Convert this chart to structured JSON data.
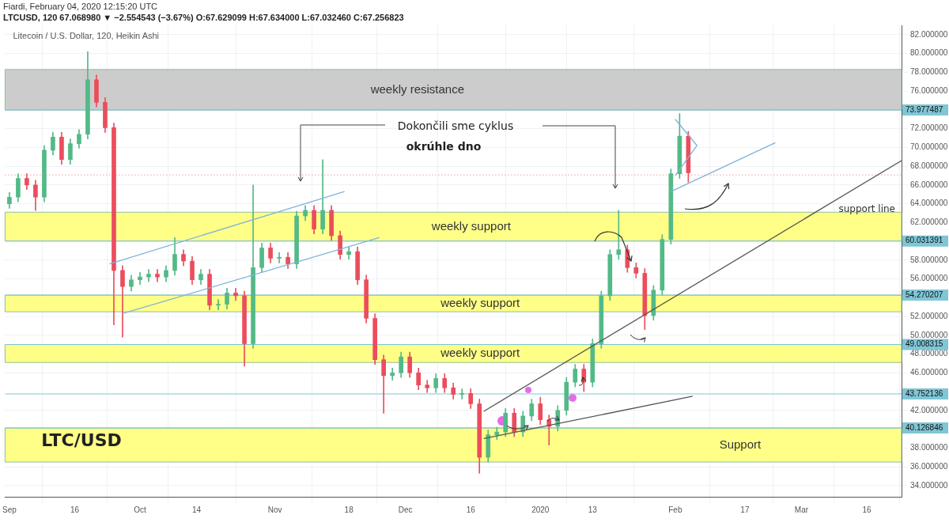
{
  "chart_data": {
    "type": "candlestick",
    "title": "Litecoin / U.S. Dollar, 120, Heikin Ashi",
    "subtitle": "LTCUSD, 120  67.068980 ▼ −2.554543 (−3.67%) O:67.629099 H:67.634000 L:67.032460 C:67.256823",
    "annotations": [
      "Fiardi, February 04, 2020 12:15:20 UTC",
      "Dokončili sme cyklus",
      "okrúhle dno",
      "LTC/USD"
    ],
    "x": [
      "2019-09-01",
      "2019-09-03",
      "2019-09-05",
      "2019-09-07",
      "2019-09-09",
      "2019-09-11",
      "2019-09-13",
      "2019-09-15",
      "2019-09-17",
      "2019-09-19",
      "2019-09-21",
      "2019-09-23",
      "2019-09-25",
      "2019-09-27",
      "2019-09-29",
      "2019-10-01",
      "2019-10-03",
      "2019-10-05",
      "2019-10-07",
      "2019-10-09",
      "2019-10-11",
      "2019-10-13",
      "2019-10-15",
      "2019-10-17",
      "2019-10-19",
      "2019-10-21",
      "2019-10-23",
      "2019-10-25",
      "2019-10-27",
      "2019-10-29",
      "2019-10-31",
      "2019-11-02",
      "2019-11-04",
      "2019-11-06",
      "2019-11-08",
      "2019-11-10",
      "2019-11-12",
      "2019-11-14",
      "2019-11-16",
      "2019-11-18",
      "2019-11-20",
      "2019-11-22",
      "2019-11-24",
      "2019-11-26",
      "2019-11-28",
      "2019-11-30",
      "2019-12-02",
      "2019-12-04",
      "2019-12-06",
      "2019-12-08",
      "2019-12-10",
      "2019-12-12",
      "2019-12-14",
      "2019-12-16",
      "2019-12-18",
      "2019-12-20",
      "2019-12-22",
      "2019-12-24",
      "2019-12-26",
      "2019-12-28",
      "2019-12-30",
      "2020-01-01",
      "2020-01-03",
      "2020-01-05",
      "2020-01-07",
      "2020-01-09",
      "2020-01-11",
      "2020-01-13",
      "2020-01-15",
      "2020-01-17",
      "2020-01-19",
      "2020-01-21",
      "2020-01-23",
      "2020-01-25",
      "2020-01-27",
      "2020-01-29",
      "2020-01-31",
      "2020-02-02",
      "2020-02-04"
    ],
    "ohlc": [
      [
        64.0,
        65.2,
        63.5,
        64.7
      ],
      [
        64.7,
        67.2,
        64.2,
        66.7
      ],
      [
        66.7,
        67.2,
        65.5,
        66.0
      ],
      [
        66.0,
        66.5,
        63.3,
        64.7
      ],
      [
        64.7,
        70.2,
        64.2,
        69.7
      ],
      [
        69.7,
        71.6,
        69.2,
        71.1
      ],
      [
        71.1,
        71.6,
        68.2,
        68.7
      ],
      [
        68.7,
        70.9,
        68.2,
        70.4
      ],
      [
        70.4,
        71.9,
        69.9,
        71.4
      ],
      [
        71.4,
        80.2,
        70.9,
        77.2
      ],
      [
        77.2,
        77.7,
        74.3,
        74.8
      ],
      [
        74.8,
        75.3,
        71.6,
        72.1
      ],
      [
        72.1,
        72.6,
        51.1,
        56.9
      ],
      [
        56.9,
        57.4,
        49.8,
        55.2
      ],
      [
        55.2,
        56.4,
        54.7,
        55.9
      ],
      [
        55.9,
        56.7,
        55.4,
        56.2
      ],
      [
        56.2,
        57.0,
        55.7,
        56.5
      ],
      [
        56.5,
        57.0,
        55.7,
        56.2
      ],
      [
        56.2,
        57.4,
        55.7,
        56.9
      ],
      [
        56.9,
        60.4,
        56.4,
        58.6
      ],
      [
        58.6,
        59.1,
        57.4,
        57.9
      ],
      [
        57.9,
        58.4,
        55.4,
        55.9
      ],
      [
        55.9,
        57.0,
        55.4,
        56.5
      ],
      [
        56.5,
        57.0,
        52.7,
        53.2
      ],
      [
        53.2,
        53.8,
        52.7,
        53.3
      ],
      [
        53.3,
        55.0,
        52.8,
        54.5
      ],
      [
        54.5,
        55.0,
        53.7,
        54.2
      ],
      [
        54.2,
        54.7,
        46.7,
        49.1
      ],
      [
        49.1,
        66.0,
        48.6,
        57.2
      ],
      [
        57.2,
        59.8,
        56.7,
        59.3
      ],
      [
        59.3,
        59.8,
        57.7,
        58.2
      ],
      [
        58.2,
        58.8,
        57.7,
        58.3
      ],
      [
        58.3,
        58.8,
        57.1,
        57.6
      ],
      [
        57.6,
        63.2,
        57.1,
        62.7
      ],
      [
        62.7,
        63.8,
        62.2,
        63.3
      ],
      [
        63.3,
        63.8,
        60.8,
        61.3
      ],
      [
        61.3,
        68.7,
        60.8,
        63.3
      ],
      [
        63.3,
        63.8,
        60.1,
        60.6
      ],
      [
        60.6,
        61.1,
        58.1,
        58.6
      ],
      [
        58.6,
        59.4,
        58.1,
        58.9
      ],
      [
        58.9,
        59.4,
        55.4,
        55.9
      ],
      [
        55.9,
        56.4,
        51.3,
        51.8
      ],
      [
        51.8,
        52.3,
        46.9,
        47.4
      ],
      [
        47.4,
        47.9,
        41.7,
        45.7
      ],
      [
        45.7,
        46.5,
        45.2,
        46.0
      ],
      [
        46.0,
        48.2,
        45.5,
        47.7
      ],
      [
        47.7,
        48.2,
        45.5,
        46.0
      ],
      [
        46.0,
        46.5,
        44.2,
        44.7
      ],
      [
        44.7,
        45.2,
        43.9,
        44.4
      ],
      [
        44.4,
        45.9,
        43.9,
        45.4
      ],
      [
        45.4,
        45.9,
        43.9,
        44.4
      ],
      [
        44.4,
        44.9,
        43.2,
        43.7
      ],
      [
        43.7,
        44.3,
        43.2,
        43.8
      ],
      [
        43.8,
        44.3,
        42.2,
        42.7
      ],
      [
        42.7,
        43.2,
        35.3,
        37.0
      ],
      [
        37.0,
        39.9,
        36.5,
        39.4
      ],
      [
        39.4,
        40.2,
        38.9,
        39.7
      ],
      [
        39.7,
        42.2,
        39.2,
        41.7
      ],
      [
        41.7,
        42.2,
        39.2,
        39.7
      ],
      [
        39.7,
        41.9,
        39.2,
        41.4
      ],
      [
        41.4,
        43.2,
        40.9,
        42.7
      ],
      [
        42.7,
        43.4,
        40.5,
        41.0
      ],
      [
        41.0,
        41.5,
        38.3,
        40.3
      ],
      [
        40.3,
        42.5,
        39.8,
        42.0
      ],
      [
        42.0,
        45.5,
        41.5,
        45.0
      ],
      [
        45.0,
        46.9,
        44.5,
        46.4
      ],
      [
        46.4,
        46.9,
        44.0,
        45.0
      ],
      [
        45.0,
        49.6,
        44.5,
        49.1
      ],
      [
        49.1,
        54.7,
        48.6,
        54.2
      ],
      [
        54.2,
        59.1,
        53.7,
        58.6
      ],
      [
        58.6,
        63.3,
        58.1,
        59.1
      ],
      [
        59.1,
        59.6,
        56.7,
        57.2
      ],
      [
        57.2,
        57.7,
        56.1,
        56.6
      ],
      [
        56.6,
        57.1,
        50.6,
        52.1
      ],
      [
        52.1,
        55.3,
        51.6,
        54.8
      ],
      [
        54.8,
        60.7,
        54.3,
        60.2
      ],
      [
        60.2,
        67.7,
        59.7,
        67.2
      ],
      [
        67.2,
        73.6,
        66.7,
        71.2
      ],
      [
        71.2,
        71.7,
        66.3,
        67.3
      ]
    ],
    "colors": [
      "#53b987",
      "#53b987",
      "#eb4d5c",
      "#eb4d5c",
      "#53b987",
      "#53b987",
      "#eb4d5c",
      "#53b987",
      "#53b987",
      "#53b987",
      "#eb4d5c",
      "#eb4d5c",
      "#eb4d5c",
      "#eb4d5c",
      "#53b987",
      "#53b987",
      "#53b987",
      "#eb4d5c",
      "#53b987",
      "#53b987",
      "#eb4d5c",
      "#eb4d5c",
      "#53b987",
      "#eb4d5c",
      "#53b987",
      "#53b987",
      "#eb4d5c",
      "#eb4d5c",
      "#53b987",
      "#53b987",
      "#eb4d5c",
      "#53b987",
      "#eb4d5c",
      "#53b987",
      "#53b987",
      "#eb4d5c",
      "#53b987",
      "#eb4d5c",
      "#eb4d5c",
      "#53b987",
      "#eb4d5c",
      "#eb4d5c",
      "#eb4d5c",
      "#eb4d5c",
      "#53b987",
      "#53b987",
      "#eb4d5c",
      "#eb4d5c",
      "#eb4d5c",
      "#53b987",
      "#eb4d5c",
      "#eb4d5c",
      "#53b987",
      "#eb4d5c",
      "#eb4d5c",
      "#53b987",
      "#53b987",
      "#53b987",
      "#eb4d5c",
      "#53b987",
      "#53b987",
      "#eb4d5c",
      "#eb4d5c",
      "#53b987",
      "#53b987",
      "#53b987",
      "#eb4d5c",
      "#53b987",
      "#53b987",
      "#53b987",
      "#53b987",
      "#eb4d5c",
      "#eb4d5c",
      "#eb4d5c",
      "#53b987",
      "#53b987",
      "#53b987",
      "#53b987",
      "#eb4d5c"
    ],
    "series": [
      {
        "type": "line",
        "color": "#7fb3d9",
        "x": [
          "2019-09-24",
          "2019-11-17"
        ],
        "values": [
          57.6,
          65.3
        ]
      },
      {
        "type": "line",
        "color": "#7fb3d9",
        "x": [
          "2019-09-27",
          "2019-11-25"
        ],
        "values": [
          52.3,
          60.4
        ]
      },
      {
        "type": "line",
        "name": "support line",
        "color": "#555555",
        "x": [
          "2019-12-19",
          "2020-03-24"
        ],
        "values": [
          41.9,
          68.6
        ]
      },
      {
        "type": "line",
        "color": "#555555",
        "x": [
          "2019-12-19",
          "2020-02-05"
        ],
        "values": [
          39.0,
          43.5
        ]
      },
      {
        "type": "line",
        "color": "#7fb3d9",
        "x": [
          "2020-01-31",
          "2020-02-24"
        ],
        "values": [
          65.3,
          70.5
        ]
      },
      {
        "type": "line",
        "color": "#7fb3d9",
        "x": [
          "2020-02-01",
          "2020-02-06",
          "2020-02-01"
        ],
        "values": [
          73.0,
          70.2,
          67.0
        ]
      }
    ],
    "bands": [
      {
        "axis": "y",
        "from": 73.977487,
        "to": 78.3,
        "label": "weekly resistance",
        "color": "#cccccc"
      },
      {
        "axis": "y",
        "from": 60.031391,
        "to": 63.1,
        "label": "weekly support",
        "color": "#ffff88"
      },
      {
        "axis": "y",
        "from": 52.5,
        "to": 54.270207,
        "label": "weekly support",
        "color": "#ffff88"
      },
      {
        "axis": "y",
        "from": 47.1,
        "to": 49.008315,
        "label": "weekly support",
        "color": "#ffff88"
      },
      {
        "axis": "y",
        "from": 36.5,
        "to": 40.126846,
        "label": "Support",
        "color": "#ffff88"
      }
    ],
    "ref_lines": [
      {
        "axis": "y",
        "value": 73.977487,
        "label": "73.977487",
        "color": "#7fc6d6"
      },
      {
        "axis": "y",
        "value": 60.031391,
        "label": "60.031391",
        "color": "#7fc6d6"
      },
      {
        "axis": "y",
        "value": 54.270207,
        "label": "54.270207",
        "color": "#7fc6d6"
      },
      {
        "axis": "y",
        "value": 49.008315,
        "label": "49.008315",
        "color": "#7fc6d6"
      },
      {
        "axis": "y",
        "value": 43.752136,
        "label": "43.752136",
        "color": "#7fc6d6"
      },
      {
        "axis": "y",
        "value": 40.126846,
        "label": "40.126846",
        "color": "#7fc6d6"
      },
      {
        "axis": "y",
        "value": 67.06898,
        "label": null,
        "color": "#e07070",
        "line_style": "dotted"
      }
    ],
    "xlim": [
      "2019-08-31",
      "2020-03-24"
    ],
    "xticks": [
      {
        "value": "2019-09-01",
        "label": "Sep"
      },
      {
        "value": "2019-09-16",
        "label": "16"
      },
      {
        "value": "2019-10-01",
        "label": "Oct"
      },
      {
        "value": "2019-10-14",
        "label": "14"
      },
      {
        "value": "2019-11-01",
        "label": "Nov"
      },
      {
        "value": "2019-11-18",
        "label": "18"
      },
      {
        "value": "2019-12-01",
        "label": "Dec"
      },
      {
        "value": "2019-12-16",
        "label": "16"
      },
      {
        "value": "2020-01-01",
        "label": "2020"
      },
      {
        "value": "2020-01-13",
        "label": "13"
      },
      {
        "value": "2020-02-01",
        "label": "Feb"
      },
      {
        "value": "2020-02-17",
        "label": "17"
      },
      {
        "value": "2020-03-01",
        "label": "Mar"
      },
      {
        "value": "2020-03-16",
        "label": "16"
      }
    ],
    "ylim": [
      32.8,
      83
    ],
    "yticks": [
      {
        "value": 34,
        "label": "34.000000"
      },
      {
        "value": 36,
        "label": "36.000000"
      },
      {
        "value": 38,
        "label": "38.000000"
      },
      {
        "value": 42,
        "label": "42.000000"
      },
      {
        "value": 46,
        "label": "46.000000"
      },
      {
        "value": 48,
        "label": "48.000000"
      },
      {
        "value": 50,
        "label": "50.000000"
      },
      {
        "value": 52,
        "label": "52.000000"
      },
      {
        "value": 56,
        "label": "56.000000"
      },
      {
        "value": 58,
        "label": "58.000000"
      },
      {
        "value": 62,
        "label": "62.000000"
      },
      {
        "value": 64,
        "label": "64.000000"
      },
      {
        "value": 66,
        "label": "66.000000"
      },
      {
        "value": 68,
        "label": "68.000000"
      },
      {
        "value": 70,
        "label": "70.000000"
      },
      {
        "value": 72,
        "label": "72.000000"
      },
      {
        "value": 76,
        "label": "76.000000"
      },
      {
        "value": 78,
        "label": "78.000000"
      },
      {
        "value": 80,
        "label": "80.000000"
      },
      {
        "value": 82,
        "label": "82.000000"
      }
    ],
    "grid": true
  }
}
